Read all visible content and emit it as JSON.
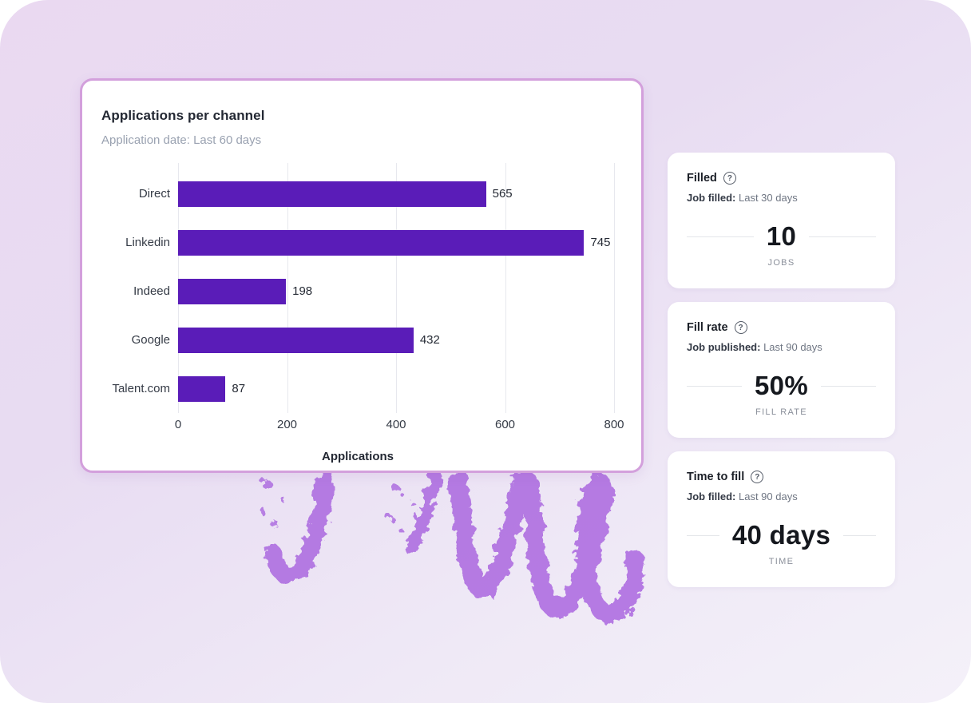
{
  "chart_data": {
    "type": "bar",
    "orientation": "horizontal",
    "title": "Applications per channel",
    "subtitle": "Application date: Last 60 days",
    "categories": [
      "Direct",
      "Linkedin",
      "Indeed",
      "Google",
      "Talent.com"
    ],
    "values": [
      565,
      745,
      198,
      432,
      87
    ],
    "xlabel": "Applications",
    "xticks": [
      0,
      200,
      400,
      600,
      800
    ],
    "xlim": [
      0,
      800
    ],
    "grid": true,
    "bar_color": "#5a1cb8",
    "gridline_color": "#e7e8ee"
  },
  "stat_cards": [
    {
      "title": "Filled",
      "filter_label": "Job filled:",
      "filter_value": " Last 30 days",
      "value": "10",
      "unit": "JOBS"
    },
    {
      "title": "Fill rate",
      "filter_label": "Job published:",
      "filter_value": " Last 90 days",
      "value": "50%",
      "unit": "FILL RATE"
    },
    {
      "title": "Time to fill",
      "filter_label": "Job filled:",
      "filter_value": " Last 90 days",
      "value": "40 days",
      "unit": "TIME"
    }
  ],
  "icons": {
    "help": "?"
  },
  "colors": {
    "accent_bar": "#5a1cb8",
    "card_border": "#d3a0dc",
    "scribble": "#b274e2",
    "background_top": "#ead9f1",
    "background_bottom": "#f4f1f9"
  }
}
